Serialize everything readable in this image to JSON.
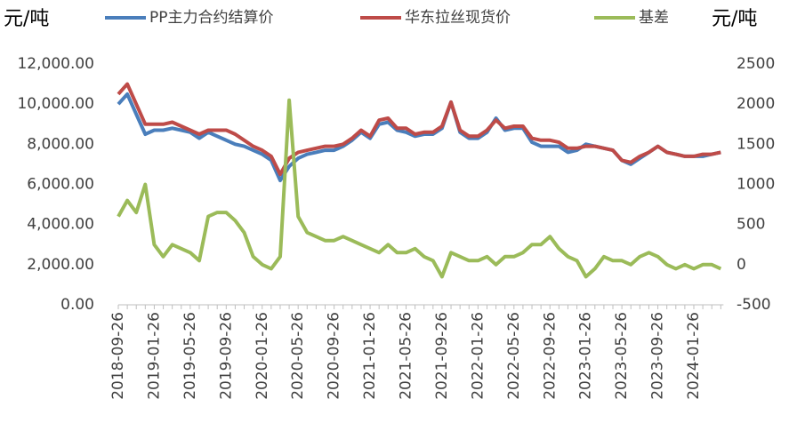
{
  "chart_data": {
    "type": "line",
    "y_axis_title": "元/吨",
    "y2_axis_title": "元/吨",
    "categories": [
      "2018-09-26",
      null,
      null,
      null,
      "2019-01-26",
      null,
      null,
      null,
      "2019-05-26",
      null,
      null,
      null,
      "2019-09-26",
      null,
      null,
      null,
      "2020-01-26",
      null,
      null,
      null,
      "2020-05-26",
      null,
      null,
      null,
      "2020-09-26",
      null,
      null,
      null,
      "2021-01-26",
      null,
      null,
      null,
      "2021-05-26",
      null,
      null,
      null,
      "2021-09-26",
      null,
      null,
      null,
      "2022-01-26",
      null,
      null,
      null,
      "2022-05-26",
      null,
      null,
      null,
      "2022-09-26",
      null,
      null,
      null,
      "2023-01-26",
      null,
      null,
      null,
      "2023-05-26",
      null,
      null,
      null,
      "2023-09-26",
      null,
      null,
      null,
      "2024-01-26",
      null,
      null,
      null
    ],
    "series": [
      {
        "name": "PP主力合约结算价",
        "color": "#4a7ebb",
        "values": [
          10000,
          10500,
          9500,
          8500,
          8700,
          8700,
          8800,
          8700,
          8600,
          8300,
          8600,
          8400,
          8200,
          8000,
          7900,
          7700,
          7500,
          7200,
          6200,
          6900,
          7300,
          7500,
          7600,
          7700,
          7700,
          7900,
          8200,
          8600,
          8300,
          9000,
          9100,
          8700,
          8600,
          8400,
          8500,
          8500,
          8800,
          10100,
          8600,
          8300,
          8300,
          8600,
          9300,
          8700,
          8800,
          8800,
          8100,
          7900,
          7900,
          7900,
          7600,
          7700,
          8000,
          7900,
          7800,
          7700,
          7200,
          7000,
          7300,
          7600,
          7900,
          7600,
          7500,
          7400,
          7400,
          7400,
          7500,
          7600
        ]
      },
      {
        "name": "华东拉丝现货价",
        "color": "#be4b48",
        "values": [
          10500,
          11000,
          10000,
          9000,
          9000,
          9000,
          9100,
          8900,
          8700,
          8500,
          8700,
          8700,
          8700,
          8500,
          8200,
          7900,
          7700,
          7400,
          6500,
          7300,
          7600,
          7700,
          7800,
          7900,
          7900,
          8000,
          8300,
          8700,
          8400,
          9200,
          9300,
          8800,
          8800,
          8500,
          8600,
          8600,
          8900,
          10100,
          8700,
          8400,
          8400,
          8700,
          9200,
          8800,
          8900,
          8900,
          8300,
          8200,
          8200,
          8100,
          7800,
          7800,
          7900,
          7900,
          7800,
          7700,
          7200,
          7100,
          7400,
          7600,
          7900,
          7600,
          7500,
          7400,
          7400,
          7500,
          7500,
          7600
        ]
      },
      {
        "name": "基差",
        "color": "#9bbb59",
        "axis": "y2",
        "values": [
          600,
          800,
          650,
          1000,
          250,
          100,
          250,
          200,
          150,
          50,
          600,
          650,
          650,
          550,
          400,
          100,
          0,
          -50,
          100,
          2050,
          600,
          400,
          350,
          300,
          300,
          350,
          300,
          250,
          200,
          150,
          250,
          150,
          150,
          200,
          100,
          50,
          -150,
          150,
          100,
          50,
          50,
          100,
          0,
          100,
          100,
          150,
          250,
          250,
          350,
          200,
          100,
          50,
          -150,
          -50,
          100,
          50,
          50,
          0,
          100,
          150,
          100,
          0,
          -50,
          0,
          -50,
          0,
          0,
          -50
        ]
      }
    ],
    "ylim": [
      0,
      12000
    ],
    "yticks": [
      {
        "value": 0,
        "label": "0.00"
      },
      {
        "value": 2000,
        "label": "2,000.00"
      },
      {
        "value": 4000,
        "label": "4,000.00"
      },
      {
        "value": 6000,
        "label": "6,000.00"
      },
      {
        "value": 8000,
        "label": "8,000.00"
      },
      {
        "value": 10000,
        "label": "10,000.00"
      },
      {
        "value": 12000,
        "label": "12,000.00"
      }
    ],
    "y2lim": [
      -500,
      2500
    ],
    "y2ticks": [
      -500,
      0,
      500,
      1000,
      1500,
      2000,
      2500
    ],
    "legend": "top",
    "grid": false
  }
}
